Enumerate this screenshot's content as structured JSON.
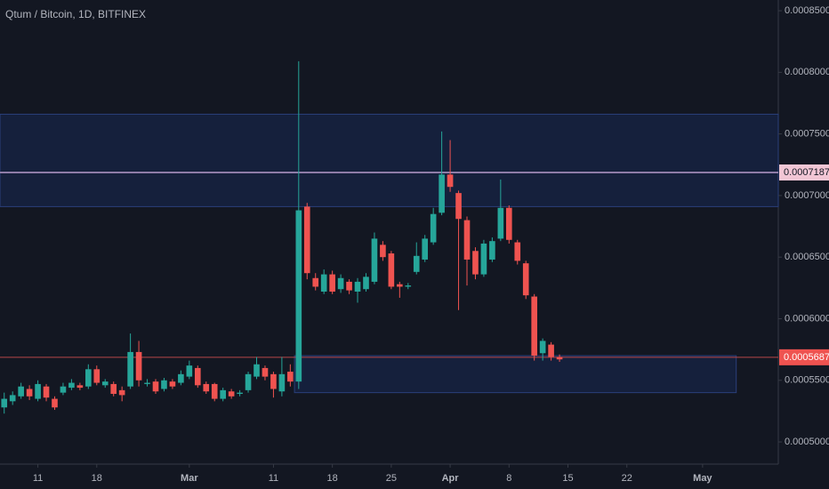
{
  "chart_data": {
    "type": "candlestick",
    "title": "Qtum / Bitcoin, 1D, BITFINEX",
    "up_color": "#26a69a",
    "down_color": "#ef5350",
    "x": [
      0,
      1,
      2,
      3,
      4,
      5,
      6,
      7,
      8,
      9,
      10,
      11,
      12,
      13,
      14,
      15,
      16,
      17,
      18,
      19,
      20,
      21,
      22,
      23,
      24,
      25,
      26,
      27,
      28,
      29,
      30,
      31,
      32,
      33,
      34,
      35,
      36,
      37,
      38,
      39,
      40,
      41,
      42,
      43,
      44,
      45,
      46,
      47,
      48,
      49,
      50,
      51,
      52,
      53,
      54,
      55,
      56,
      57,
      58,
      59,
      60,
      61,
      62,
      63,
      64,
      65,
      66
    ],
    "open": [
      0.000528,
      0.000533,
      0.000537,
      0.000543,
      0.000535,
      0.000545,
      0.000535,
      0.00054,
      0.000544,
      0.000546,
      0.000545,
      0.000559,
      0.000546,
      0.000547,
      0.000542,
      0.000545,
      0.000573,
      0.000547,
      0.000549,
      0.000543,
      0.000549,
      0.000548,
      0.000553,
      0.00056,
      0.000547,
      0.000547,
      0.000535,
      0.000541,
      0.000539,
      0.000542,
      0.000553,
      0.00056,
      0.000555,
      0.000541,
      0.000557,
      0.000549,
      0.000691,
      0.000633,
      0.000622,
      0.000636,
      0.000624,
      0.00063,
      0.000622,
      0.000624,
      0.00063,
      0.00066,
      0.000653,
      0.000628,
      0.000626,
      0.000638,
      0.000648,
      0.000662,
      0.000686,
      0.000717,
      0.000702,
      0.00068,
      0.000655,
      0.000636,
      0.000648,
      0.000665,
      0.00069,
      0.000662,
      0.000645,
      0.000618,
      0.000572,
      0.000579,
      0.000569
    ],
    "high": [
      0.00054,
      0.000541,
      0.000548,
      0.000546,
      0.00055,
      0.000547,
      0.000537,
      0.000548,
      0.000551,
      0.000548,
      0.000563,
      0.000562,
      0.000551,
      0.000549,
      0.000545,
      0.000588,
      0.000582,
      0.000551,
      0.000551,
      0.000552,
      0.000551,
      0.000558,
      0.000566,
      0.000562,
      0.000549,
      0.000548,
      0.000544,
      0.000543,
      0.000542,
      0.000557,
      0.000569,
      0.000562,
      0.000557,
      0.000569,
      0.000563,
      0.000809,
      0.000694,
      0.000637,
      0.00064,
      0.000639,
      0.000636,
      0.000632,
      0.000633,
      0.000637,
      0.00067,
      0.000663,
      0.000655,
      0.00063,
      0.000629,
      0.000662,
      0.000668,
      0.00069,
      0.000752,
      0.000745,
      0.000704,
      0.000683,
      0.000658,
      0.000664,
      0.000666,
      0.000713,
      0.000692,
      0.000664,
      0.000647,
      0.00062,
      0.000584,
      0.000581,
      0.000571
    ],
    "low": [
      0.000523,
      0.00053,
      0.000535,
      0.000534,
      0.000533,
      0.000533,
      0.000526,
      0.000538,
      0.000542,
      0.000542,
      0.000543,
      0.000546,
      0.000544,
      0.000537,
      0.000533,
      0.000543,
      0.000545,
      0.000545,
      0.000539,
      0.000541,
      0.000543,
      0.000546,
      0.000551,
      0.000544,
      0.000539,
      0.000533,
      0.000533,
      0.000535,
      0.000537,
      0.00054,
      0.000551,
      0.00055,
      0.000536,
      0.000537,
      0.000545,
      0.000543,
      0.000632,
      0.000623,
      0.00062,
      0.00062,
      0.000621,
      0.00062,
      0.000613,
      0.000622,
      0.000628,
      0.000647,
      0.000624,
      0.000617,
      0.000624,
      0.000636,
      0.000646,
      0.00066,
      0.000684,
      0.000703,
      0.000607,
      0.000627,
      0.000632,
      0.000634,
      0.000646,
      0.000663,
      0.000661,
      0.000644,
      0.000616,
      0.000566,
      0.000566,
      0.000566,
      0.000565
    ],
    "close": [
      0.000535,
      0.000538,
      0.000545,
      0.000537,
      0.000547,
      0.000536,
      0.000528,
      0.000545,
      0.000548,
      0.000544,
      0.000559,
      0.000548,
      0.000549,
      0.000539,
      0.000538,
      0.000573,
      0.00055,
      0.000548,
      0.000541,
      0.00055,
      0.000545,
      0.000555,
      0.000562,
      0.000546,
      0.000541,
      0.000535,
      0.000542,
      0.000537,
      0.00054,
      0.000555,
      0.000563,
      0.000553,
      0.000543,
      0.000555,
      0.000549,
      0.000688,
      0.000637,
      0.000626,
      0.000636,
      0.000622,
      0.000633,
      0.000623,
      0.00063,
      0.000634,
      0.000665,
      0.00065,
      0.000626,
      0.000626,
      0.000627,
      0.000651,
      0.000665,
      0.000685,
      0.000717,
      0.000707,
      0.000681,
      0.000648,
      0.000636,
      0.000661,
      0.000663,
      0.00069,
      0.000664,
      0.000647,
      0.000619,
      0.00057,
      0.000582,
      0.000569,
      0.000567
    ],
    "xlim": [
      -0.5,
      92
    ],
    "xticks": [
      {
        "value": 4,
        "label": "11"
      },
      {
        "value": 11,
        "label": "18"
      },
      {
        "value": 22,
        "label": "Mar"
      },
      {
        "value": 32,
        "label": "11"
      },
      {
        "value": 39,
        "label": "18"
      },
      {
        "value": 46,
        "label": "25"
      },
      {
        "value": 53,
        "label": "Apr"
      },
      {
        "value": 60,
        "label": "8"
      },
      {
        "value": 67,
        "label": "15"
      },
      {
        "value": 74,
        "label": "22"
      },
      {
        "value": 83,
        "label": "May"
      }
    ],
    "ylim": [
      0.000482,
      0.0008587
    ],
    "yticks": [
      {
        "value": 0.0005,
        "label": "0.0005000"
      },
      {
        "value": 0.00055,
        "label": "0.0005500"
      },
      {
        "value": 0.0006,
        "label": "0.0006000"
      },
      {
        "value": 0.00065,
        "label": "0.0006500"
      },
      {
        "value": 0.0007,
        "label": "0.0007000"
      },
      {
        "value": 0.00075,
        "label": "0.0007500"
      },
      {
        "value": 0.0008,
        "label": "0.0008000"
      },
      {
        "value": 0.00085,
        "label": "0.0008500"
      }
    ],
    "zones": [
      {
        "x": [
          -0.5,
          92
        ],
        "y": [
          0.000691,
          0.000766
        ]
      },
      {
        "x": [
          34.5,
          87
        ],
        "y": [
          0.00054,
          0.00057
        ]
      }
    ],
    "price_lines": [
      {
        "value": 0.0007187,
        "color": "#8e7ca8",
        "label_bg": "#f2c6d5",
        "label_fg": "#131722"
      },
      {
        "value": 0.0005687,
        "color": "#b9474a",
        "label_bg": "#ef5350",
        "label_fg": "#ffffff"
      }
    ]
  }
}
